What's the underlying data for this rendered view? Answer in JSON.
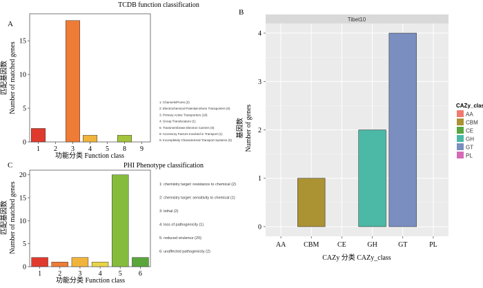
{
  "chart_data": [
    {
      "panel": "A",
      "type": "bar",
      "title": "TCDB function classification",
      "ylabel_cn": "匹配基因数",
      "ylabel": "Number of matched genes",
      "xlabel": "功能分类 Function class",
      "categories": [
        "1",
        "2",
        "3",
        "4",
        "5",
        "8",
        "9"
      ],
      "values": [
        2,
        0,
        18,
        1,
        0,
        1,
        0
      ],
      "colors": [
        "#e03a2e",
        "#e03a2e",
        "#ef7c36",
        "#f0b43c",
        "#f0b43c",
        "#a4c43c",
        "#a4c43c"
      ],
      "yticks": [
        0,
        5,
        10,
        15
      ],
      "ylim": [
        0,
        19
      ],
      "legend": [
        "1: Channels/Pores  (2)",
        "2: Electrochemical Potential-driven Transporters  (0)",
        "3: Primary Active Transporters  (18)",
        "4: Group Translocators  (1)",
        "5: Transmembrane Electron Carriers  (0)",
        "8: Accessory Factors Involved in Transport  (1)",
        "9: Incompletely Characterized Transport Systems  (0)"
      ]
    },
    {
      "panel": "C",
      "type": "bar",
      "title": "PHI Phenotype classification",
      "ylabel_cn": "匹配基因数",
      "ylabel": "Number of matched genes",
      "xlabel": "功能分类 Function class",
      "categories": [
        "1",
        "2",
        "3",
        "4",
        "5",
        "6"
      ],
      "values": [
        2,
        1,
        2,
        1,
        20,
        2
      ],
      "colors": [
        "#e03a2e",
        "#ef7c36",
        "#f0b43c",
        "#e8d44a",
        "#86bc3c",
        "#5aa63a"
      ],
      "yticks": [
        0,
        5,
        10,
        15,
        20
      ],
      "ylim": [
        0,
        21
      ],
      "legend": [
        "1: chemistry target: resistance to chemical  (2)",
        "2: chemistry target: sensitivity to chemical  (1)",
        "3: lethal  (2)",
        "4: loss of pathogenicity  (1)",
        "5: reduced virulence  (20)",
        "6: unaffected pathogenicity  (2)"
      ]
    },
    {
      "panel": "B",
      "type": "bar",
      "facet": "Tibet10",
      "ylabel_cn": "基因数",
      "ylabel": "Number of genes",
      "xlabel": "CAZy 分类 CAZy_class",
      "categories": [
        "AA",
        "CBM",
        "CE",
        "GH",
        "GT",
        "PL"
      ],
      "values": [
        0,
        1,
        0,
        2,
        4,
        0
      ],
      "colors": [
        "#f07a70",
        "#ab9233",
        "#57a641",
        "#4cb8a6",
        "#7a8ec0",
        "#d46ab4"
      ],
      "yticks": [
        0,
        1,
        2,
        3,
        4
      ],
      "ylim": [
        -0.2,
        4.2
      ],
      "legend_title": "CAZy_class",
      "legend": [
        "AA",
        "CBM",
        "CE",
        "GH",
        "GT",
        "PL"
      ]
    }
  ]
}
